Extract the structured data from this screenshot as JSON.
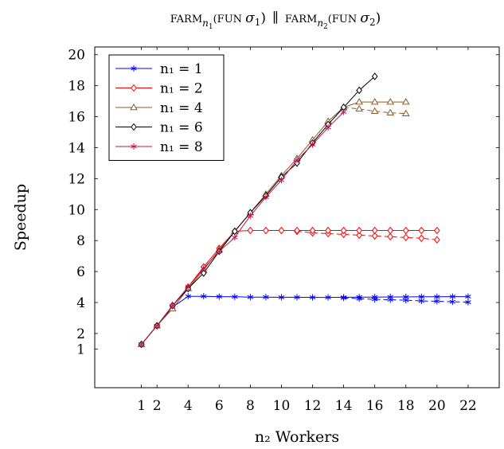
{
  "chart_data": {
    "type": "line",
    "title": "FARM_{n1}(FUN σ1) ∥ FARM_{n2}(FUN σ2)",
    "title_parts": {
      "farm1": "FARM",
      "sub1": "n",
      "subsub1": "1",
      "fun1": "(FUN ",
      "sigma1": "σ",
      "sigmasub1": "1",
      "close1": ")",
      "parallel": "∥",
      "farm2": "FARM",
      "sub2": "n",
      "subsub2": "2",
      "fun2": "(FUN ",
      "sigma2": "σ",
      "sigmasub2": "2",
      "close2": ")"
    },
    "xlabel": "n₂ Workers",
    "ylabel": "Speedup",
    "xlim": [
      -2,
      24
    ],
    "ylim": [
      -1.5,
      20.5
    ],
    "xticks": [
      1,
      2,
      4,
      6,
      8,
      10,
      12,
      14,
      16,
      18,
      20,
      22
    ],
    "yticks": [
      1,
      2,
      4,
      6,
      8,
      10,
      12,
      14,
      16,
      18,
      20
    ],
    "grid": false,
    "legend_position": "top-left",
    "series": [
      {
        "name": "n₁ = 1",
        "color": "#0000ff",
        "marker": "star",
        "x": [
          1,
          2,
          3,
          4,
          5,
          6,
          7,
          8,
          9,
          10,
          11,
          12,
          13,
          14,
          15,
          16,
          17,
          18,
          19,
          20,
          21,
          22
        ],
        "y": [
          1.3,
          2.5,
          3.7,
          4.4,
          4.4,
          4.38,
          4.37,
          4.35,
          4.35,
          4.34,
          4.34,
          4.33,
          4.33,
          4.34,
          4.35,
          4.35,
          4.36,
          4.36,
          4.37,
          4.37,
          4.38,
          4.38
        ],
        "y_dashed": [
          4.3,
          4.25,
          4.2,
          4.18,
          4.15,
          4.1,
          4.08,
          4.05,
          4.02
        ],
        "x_dashed": [
          14,
          15,
          16,
          17,
          18,
          19,
          20,
          21,
          22
        ]
      },
      {
        "name": "n₁ = 2",
        "color": "#ff0000",
        "marker": "diamond",
        "x": [
          1,
          2,
          3,
          4,
          5,
          6,
          7,
          8,
          9,
          10,
          11,
          12,
          13,
          14,
          15,
          16,
          17,
          18,
          19,
          20
        ],
        "y": [
          1.3,
          2.5,
          3.8,
          5.0,
          6.3,
          7.5,
          8.6,
          8.65,
          8.65,
          8.65,
          8.65,
          8.65,
          8.65,
          8.65,
          8.65,
          8.65,
          8.65,
          8.65,
          8.65,
          8.65
        ],
        "y_dashed": [
          8.6,
          8.5,
          8.45,
          8.4,
          8.35,
          8.3,
          8.25,
          8.2,
          8.15,
          8.05
        ],
        "x_dashed": [
          11,
          12,
          13,
          14,
          15,
          16,
          17,
          18,
          19,
          20
        ]
      },
      {
        "name": "n₁ = 4",
        "color": "#8b5a2b",
        "marker": "triangle",
        "x": [
          1,
          2,
          3,
          4,
          5,
          6,
          7,
          8,
          9,
          10,
          11,
          12,
          13,
          14,
          15,
          16,
          17,
          18
        ],
        "y": [
          1.3,
          2.5,
          3.6,
          4.9,
          6.1,
          7.4,
          8.6,
          9.8,
          11.0,
          12.2,
          13.3,
          14.5,
          15.7,
          16.6,
          16.95,
          16.95,
          16.95,
          16.95
        ],
        "y_dashed": [
          16.6,
          16.5,
          16.35,
          16.25,
          16.2
        ],
        "x_dashed": [
          14,
          15,
          16,
          17,
          18
        ]
      },
      {
        "name": "n₁ = 6",
        "color": "#000000",
        "marker": "diamond",
        "x": [
          1,
          2,
          3,
          4,
          5,
          6,
          7,
          8,
          9,
          10,
          11,
          12,
          13,
          14,
          15,
          16
        ],
        "y": [
          1.3,
          2.5,
          3.8,
          4.9,
          5.9,
          7.3,
          8.6,
          9.8,
          10.9,
          12.1,
          13.0,
          14.3,
          15.5,
          16.6,
          17.7,
          18.6
        ]
      },
      {
        "name": "n₁ = 8",
        "color": "#c0144a",
        "marker": "star",
        "x": [
          1,
          2,
          3,
          4,
          5,
          6,
          7,
          8,
          9,
          10,
          11,
          12,
          13,
          14
        ],
        "y": [
          1.3,
          2.5,
          3.8,
          5.0,
          6.2,
          7.3,
          8.2,
          9.6,
          10.8,
          11.9,
          13.2,
          14.2,
          15.3,
          16.3
        ]
      }
    ]
  }
}
